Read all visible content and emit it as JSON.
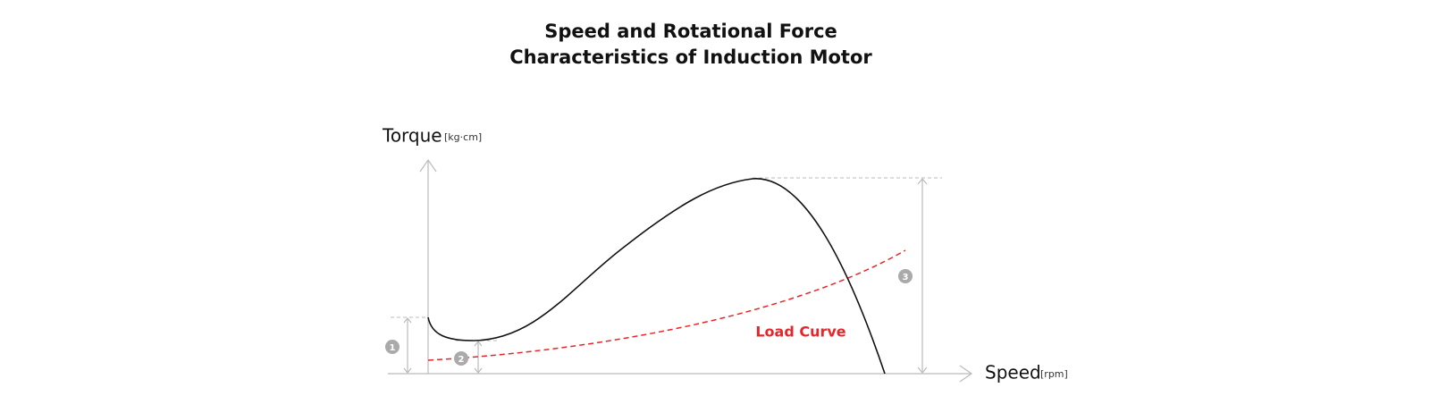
{
  "title": {
    "line1": "Speed and Rotational Force",
    "line2": "Characteristics of Induction Motor"
  },
  "axes": {
    "y_label": "Torque",
    "y_unit": "[kg·cm]",
    "x_label": "Speed",
    "x_unit": "[rpm]"
  },
  "load_curve_label": "Load Curve",
  "markers": [
    "1",
    "2",
    "3"
  ]
}
